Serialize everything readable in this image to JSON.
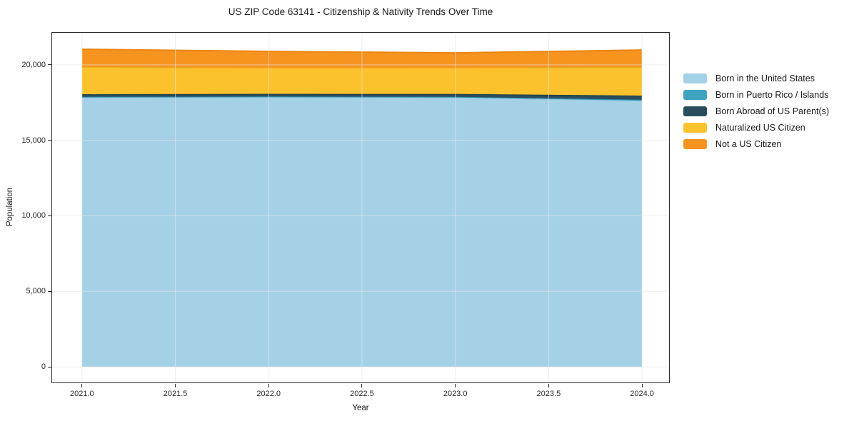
{
  "title": "US ZIP Code 63141 - Citizenship & Nativity Trends Over Time",
  "chart_data": {
    "type": "area",
    "stacked": true,
    "title": "US ZIP Code 63141 - Citizenship & Nativity Trends Over Time",
    "xlabel": "Year",
    "ylabel": "Population",
    "x": [
      2021,
      2022,
      2023,
      2024
    ],
    "series": [
      {
        "name": "Born in the United States",
        "color": "#a5d1e6",
        "line_color": "#8cc5df",
        "values": [
          17850,
          17870,
          17850,
          17620
        ]
      },
      {
        "name": "Born in Puerto Rico / Islands",
        "color": "#41a3c2",
        "line_color": "#3694b2",
        "values": [
          30,
          30,
          30,
          70
        ]
      },
      {
        "name": "Born Abroad of US Parent(s)",
        "color": "#294d5c",
        "line_color": "#1e3d4a",
        "values": [
          170,
          180,
          190,
          270
        ]
      },
      {
        "name": "Naturalized US Citizen",
        "color": "#fcc22d",
        "line_color": "#edb01f",
        "values": [
          1800,
          1720,
          1740,
          1880
        ]
      },
      {
        "name": "Not a US Citizen",
        "color": "#f79420",
        "line_color": "#e8850f",
        "values": [
          1180,
          1090,
          980,
          1140
        ]
      }
    ],
    "totals": [
      21030,
      20890,
      20790,
      20980
    ],
    "xlim": [
      2020.84,
      2024.145
    ],
    "ylim": [
      -1035,
      22118
    ],
    "x_ticks": [
      {
        "value": 2021,
        "label": "2021.0"
      },
      {
        "value": 2021.5,
        "label": "2021.5"
      },
      {
        "value": 2022,
        "label": "2022.0"
      },
      {
        "value": 2022.5,
        "label": "2022.5"
      },
      {
        "value": 2023,
        "label": "2023.0"
      },
      {
        "value": 2023.5,
        "label": "2023.5"
      },
      {
        "value": 2024,
        "label": "2024.0"
      }
    ],
    "y_ticks": [
      {
        "value": 0,
        "label": "0"
      },
      {
        "value": 5000,
        "label": "5,000"
      },
      {
        "value": 10000,
        "label": "10,000"
      },
      {
        "value": 15000,
        "label": "15,000"
      },
      {
        "value": 20000,
        "label": "20,000"
      }
    ],
    "grid": true,
    "grid_color": "#e5e5e5",
    "legend_position": "right"
  }
}
